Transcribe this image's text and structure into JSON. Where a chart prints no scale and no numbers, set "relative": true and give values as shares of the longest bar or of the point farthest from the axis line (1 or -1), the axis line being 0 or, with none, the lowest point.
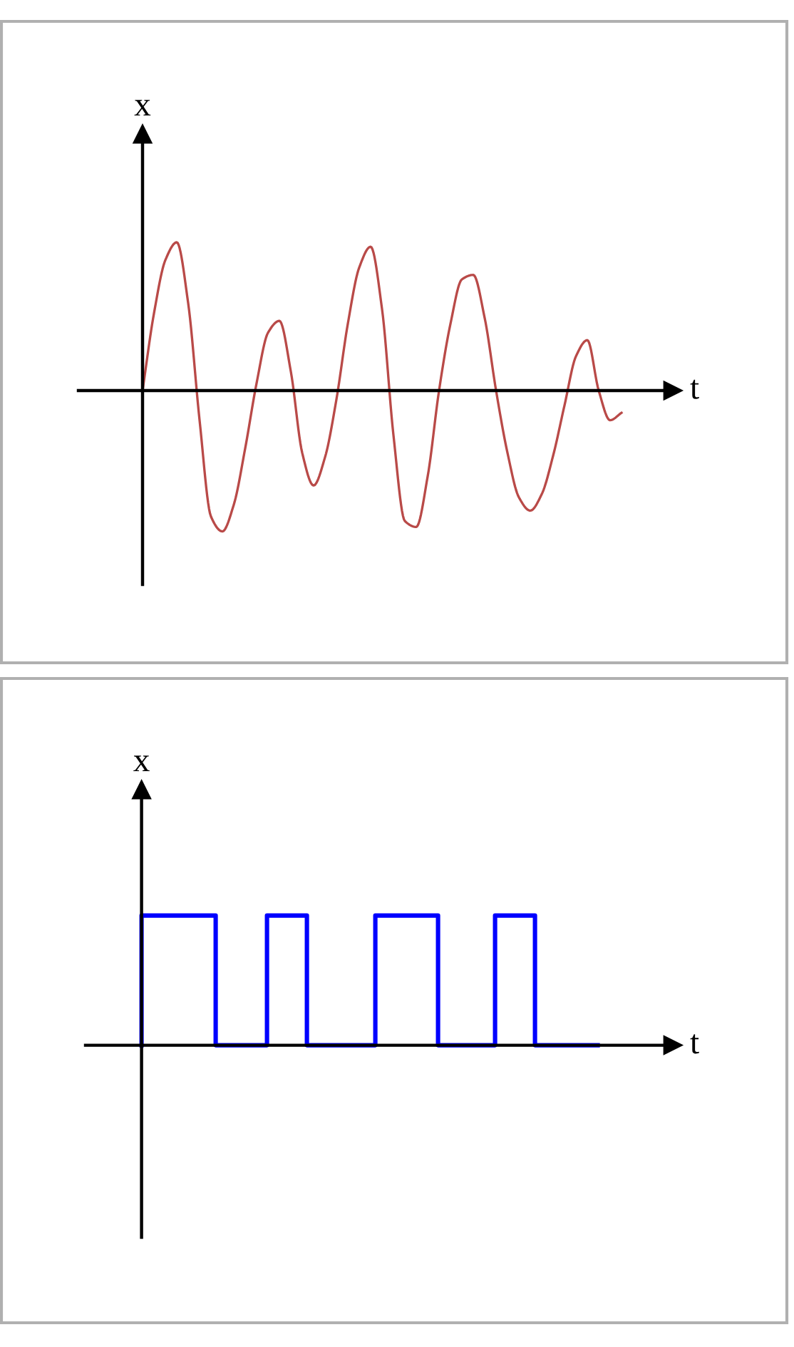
{
  "chart_data": [
    {
      "type": "line",
      "xlabel": "t",
      "ylabel": "x",
      "relative": true,
      "categories": [
        null,
        null,
        null,
        null,
        null,
        null,
        null,
        null,
        null,
        null,
        null,
        null,
        null,
        null,
        null,
        null,
        null,
        null,
        null,
        null,
        null,
        null,
        null,
        null,
        null,
        null,
        null,
        null,
        null,
        null,
        null,
        null,
        null,
        null,
        null,
        null,
        null,
        null,
        null,
        null,
        null,
        null,
        null
      ],
      "series": [
        {
          "color": "#b94a48",
          "values": [
            0,
            0.52,
            0.88,
            1.0,
            0.59,
            -0.2,
            -0.85,
            -0.95,
            -0.77,
            -0.39,
            0.05,
            0.39,
            0.47,
            0.13,
            -0.42,
            -0.64,
            -0.45,
            -0.06,
            0.45,
            0.83,
            0.97,
            0.55,
            -0.3,
            -0.88,
            -0.92,
            -0.58,
            0,
            0.45,
            0.75,
            0.78,
            0.49,
            0,
            -0.42,
            -0.72,
            -0.81,
            -0.7,
            -0.44,
            -0.1,
            0.23,
            0.34,
            0,
            -0.2,
            -0.15
          ]
        }
      ]
    },
    {
      "type": "step",
      "xlabel": "t",
      "ylabel": "x",
      "relative": true,
      "categories": [
        null,
        null,
        null,
        null,
        null,
        null,
        null,
        null,
        null,
        null,
        null,
        null,
        null,
        null,
        null,
        null,
        null,
        null,
        null,
        null,
        null,
        null,
        null,
        null,
        null,
        null,
        null,
        null,
        null,
        null,
        null,
        null,
        null,
        null,
        null,
        null,
        null,
        null,
        null,
        null,
        null,
        null,
        null,
        null,
        null,
        null,
        null,
        null,
        null,
        null,
        null,
        null,
        null,
        null,
        null,
        null,
        null,
        null,
        null,
        null,
        null,
        null,
        null,
        null,
        null,
        null,
        null,
        null,
        null,
        null,
        null,
        null,
        null,
        null,
        null,
        null,
        null,
        null,
        null,
        null,
        null
      ],
      "series": [
        {
          "color": "#0000ff",
          "values": [
            0,
            1,
            1,
            1,
            1,
            1,
            1,
            1,
            1,
            1,
            1,
            1,
            1,
            1,
            0,
            0,
            0,
            0,
            0,
            0,
            0,
            0,
            0,
            1,
            1,
            1,
            1,
            1,
            1,
            1,
            0,
            0,
            0,
            0,
            0,
            0,
            0,
            0,
            0,
            0,
            0,
            0,
            1,
            1,
            1,
            1,
            1,
            1,
            1,
            1,
            1,
            1,
            1,
            0,
            0,
            0,
            0,
            0,
            0,
            0,
            0,
            0,
            0,
            1,
            1,
            1,
            1,
            1,
            1,
            1,
            0,
            0,
            0,
            0,
            0,
            0,
            0,
            0,
            0,
            0,
            0
          ]
        }
      ]
    }
  ]
}
